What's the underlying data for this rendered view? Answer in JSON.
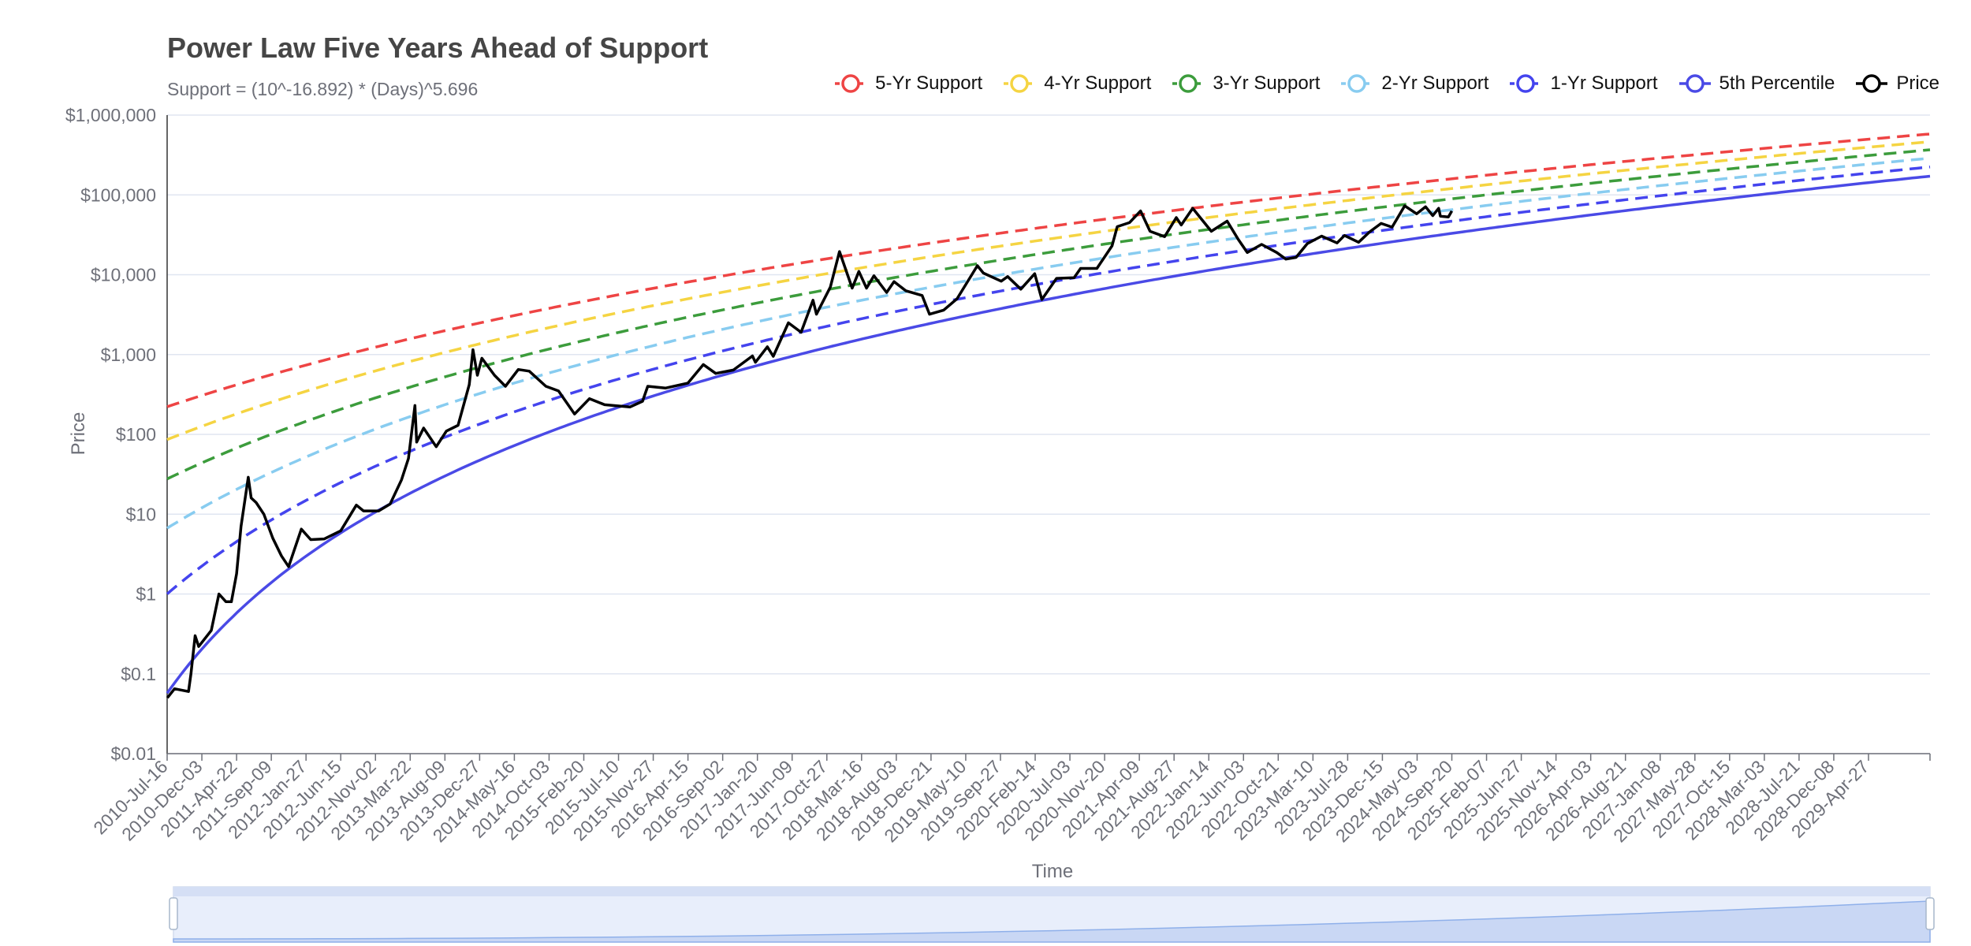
{
  "chart_data": {
    "type": "line",
    "title": "Power Law Five Years Ahead of Support",
    "subtitle": "Support = (10^-16.892) * (Days)^5.696",
    "xlabel": "Time",
    "ylabel": "Price",
    "y_scale": "log",
    "ylim": [
      0.01,
      1000000
    ],
    "xlim": [
      "2010-07-16",
      "2029-12-31"
    ],
    "y_ticks": [
      "$0.01",
      "$0.1",
      "$1",
      "$10",
      "$100",
      "$1,000",
      "$10,000",
      "$100,000",
      "$1,000,000"
    ],
    "x_ticks": [
      "2010-Jul-16",
      "2010-Dec-03",
      "2011-Apr-22",
      "2011-Sep-09",
      "2012-Jan-27",
      "2012-Jun-15",
      "2012-Nov-02",
      "2013-Mar-22",
      "2013-Aug-09",
      "2013-Dec-27",
      "2014-May-16",
      "2014-Oct-03",
      "2015-Feb-20",
      "2015-Jul-10",
      "2015-Nov-27",
      "2016-Apr-15",
      "2016-Sep-02",
      "2017-Jan-20",
      "2017-Jun-09",
      "2017-Oct-27",
      "2018-Mar-16",
      "2018-Aug-03",
      "2018-Dec-21",
      "2019-May-10",
      "2019-Sep-27",
      "2020-Feb-14",
      "2020-Jul-03",
      "2020-Nov-20",
      "2021-Apr-09",
      "2021-Aug-27",
      "2022-Jan-14",
      "2022-Jun-03",
      "2022-Oct-21",
      "2023-Mar-10",
      "2023-Jul-28",
      "2023-Dec-15",
      "2024-May-03",
      "2024-Sep-20",
      "2025-Feb-07",
      "2025-Jun-27",
      "2025-Nov-14",
      "2026-Apr-03",
      "2026-Aug-21",
      "2027-Jan-08",
      "2027-May-28",
      "2027-Oct-15",
      "2028-Mar-03",
      "2028-Jul-21",
      "2028-Dec-08",
      "2029-Apr-27"
    ],
    "legend_position": "top-right",
    "grid": "horizontal",
    "support_formula": {
      "coefficient_log10": -16.892,
      "exponent": 5.696,
      "day_origin": "2009-01-03"
    },
    "series": [
      {
        "name": "5-Yr Support",
        "color": "#ee4444",
        "dash": true,
        "shift_years": 5
      },
      {
        "name": "4-Yr Support",
        "color": "#f5d442",
        "dash": true,
        "shift_years": 4
      },
      {
        "name": "3-Yr Support",
        "color": "#3c9c3c",
        "dash": true,
        "shift_years": 3
      },
      {
        "name": "2-Yr Support",
        "color": "#88ccf0",
        "dash": true,
        "shift_years": 2
      },
      {
        "name": "1-Yr Support",
        "color": "#4444ee",
        "dash": true,
        "shift_years": 1
      },
      {
        "name": "5th Percentile",
        "color": "#4a4ae6",
        "dash": false,
        "shift_years": 0
      },
      {
        "name": "Price",
        "color": "#000000",
        "dash": false,
        "points": [
          [
            "2010-07-17",
            0.05
          ],
          [
            "2010-08-15",
            0.065
          ],
          [
            "2010-10-10",
            0.06
          ],
          [
            "2010-10-20",
            0.1
          ],
          [
            "2010-11-06",
            0.3
          ],
          [
            "2010-11-20",
            0.22
          ],
          [
            "2011-01-10",
            0.35
          ],
          [
            "2011-02-10",
            1.0
          ],
          [
            "2011-03-10",
            0.8
          ],
          [
            "2011-04-01",
            0.8
          ],
          [
            "2011-04-22",
            1.8
          ],
          [
            "2011-05-10",
            7.0
          ],
          [
            "2011-06-08",
            29.0
          ],
          [
            "2011-06-20",
            16.0
          ],
          [
            "2011-07-10",
            14.0
          ],
          [
            "2011-08-10",
            10.0
          ],
          [
            "2011-09-15",
            5.0
          ],
          [
            "2011-10-20",
            3.0
          ],
          [
            "2011-11-18",
            2.2
          ],
          [
            "2012-01-08",
            6.5
          ],
          [
            "2012-02-15",
            4.8
          ],
          [
            "2012-04-10",
            4.9
          ],
          [
            "2012-06-15",
            6.2
          ],
          [
            "2012-08-17",
            13.0
          ],
          [
            "2012-09-15",
            11.0
          ],
          [
            "2012-11-15",
            11.0
          ],
          [
            "2012-12-31",
            13.4
          ],
          [
            "2013-02-15",
            27.0
          ],
          [
            "2013-03-15",
            50.0
          ],
          [
            "2013-04-10",
            230.0
          ],
          [
            "2013-04-17",
            80.0
          ],
          [
            "2013-05-15",
            120.0
          ],
          [
            "2013-07-05",
            70.0
          ],
          [
            "2013-08-15",
            110.0
          ],
          [
            "2013-10-01",
            130.0
          ],
          [
            "2013-11-15",
            420.0
          ],
          [
            "2013-11-30",
            1150.0
          ],
          [
            "2013-12-18",
            550.0
          ],
          [
            "2014-01-05",
            900.0
          ],
          [
            "2014-02-25",
            550.0
          ],
          [
            "2014-04-10",
            400.0
          ],
          [
            "2014-06-01",
            650.0
          ],
          [
            "2014-07-15",
            620.0
          ],
          [
            "2014-09-20",
            400.0
          ],
          [
            "2014-11-10",
            350.0
          ],
          [
            "2015-01-14",
            180.0
          ],
          [
            "2015-03-15",
            280.0
          ],
          [
            "2015-05-15",
            235.0
          ],
          [
            "2015-08-25",
            220.0
          ],
          [
            "2015-10-15",
            260.0
          ],
          [
            "2015-11-05",
            400.0
          ],
          [
            "2016-01-15",
            380.0
          ],
          [
            "2016-04-15",
            440.0
          ],
          [
            "2016-06-16",
            750.0
          ],
          [
            "2016-08-05",
            580.0
          ],
          [
            "2016-10-15",
            640.0
          ],
          [
            "2016-12-31",
            960.0
          ],
          [
            "2017-01-12",
            800.0
          ],
          [
            "2017-03-01",
            1250.0
          ],
          [
            "2017-03-25",
            950.0
          ],
          [
            "2017-05-25",
            2500.0
          ],
          [
            "2017-07-15",
            1900.0
          ],
          [
            "2017-09-01",
            4800.0
          ],
          [
            "2017-09-15",
            3200.0
          ],
          [
            "2017-11-10",
            7000.0
          ],
          [
            "2017-12-17",
            19500.0
          ],
          [
            "2018-02-06",
            6800.0
          ],
          [
            "2018-03-05",
            11000.0
          ],
          [
            "2018-04-05",
            6800.0
          ],
          [
            "2018-05-05",
            9700.0
          ],
          [
            "2018-06-25",
            6000.0
          ],
          [
            "2018-07-25",
            8200.0
          ],
          [
            "2018-09-10",
            6300.0
          ],
          [
            "2018-11-15",
            5500.0
          ],
          [
            "2018-12-15",
            3200.0
          ],
          [
            "2019-02-10",
            3600.0
          ],
          [
            "2019-04-05",
            5000.0
          ],
          [
            "2019-06-26",
            13000.0
          ],
          [
            "2019-07-20",
            10500.0
          ],
          [
            "2019-09-30",
            8300.0
          ],
          [
            "2019-10-26",
            9500.0
          ],
          [
            "2019-12-18",
            6600.0
          ],
          [
            "2020-02-12",
            10300.0
          ],
          [
            "2020-03-12",
            4900.0
          ],
          [
            "2020-05-10",
            9000.0
          ],
          [
            "2020-07-20",
            9200.0
          ],
          [
            "2020-08-15",
            12000.0
          ],
          [
            "2020-10-20",
            12000.0
          ],
          [
            "2020-12-20",
            23000.0
          ],
          [
            "2021-01-10",
            40000.0
          ],
          [
            "2021-02-28",
            45000.0
          ],
          [
            "2021-04-14",
            63000.0
          ],
          [
            "2021-05-22",
            35000.0
          ],
          [
            "2021-07-20",
            30000.0
          ],
          [
            "2021-09-05",
            52000.0
          ],
          [
            "2021-09-25",
            42000.0
          ],
          [
            "2021-11-10",
            68000.0
          ],
          [
            "2022-01-24",
            35000.0
          ],
          [
            "2022-03-29",
            47000.0
          ],
          [
            "2022-05-12",
            28000.0
          ],
          [
            "2022-06-18",
            19000.0
          ],
          [
            "2022-08-15",
            24000.0
          ],
          [
            "2022-10-15",
            19000.0
          ],
          [
            "2022-11-21",
            15700.0
          ],
          [
            "2023-01-01",
            16500.0
          ],
          [
            "2023-02-15",
            24500.0
          ],
          [
            "2023-04-14",
            30500.0
          ],
          [
            "2023-06-15",
            25000.0
          ],
          [
            "2023-07-15",
            31000.0
          ],
          [
            "2023-09-10",
            25500.0
          ],
          [
            "2023-10-25",
            34500.0
          ],
          [
            "2023-12-10",
            44000.0
          ],
          [
            "2024-01-23",
            39500.0
          ],
          [
            "2024-03-14",
            73000.0
          ],
          [
            "2024-05-01",
            58000.0
          ],
          [
            "2024-06-06",
            71000.0
          ],
          [
            "2024-07-05",
            55000.0
          ],
          [
            "2024-07-29",
            68000.0
          ],
          [
            "2024-08-05",
            54000.0
          ],
          [
            "2024-09-06",
            53000.0
          ],
          [
            "2024-09-20",
            63000.0
          ]
        ]
      }
    ],
    "zoom_slider": {
      "start": 0,
      "end": 100
    }
  },
  "legend_icon": "circle-line-icon"
}
